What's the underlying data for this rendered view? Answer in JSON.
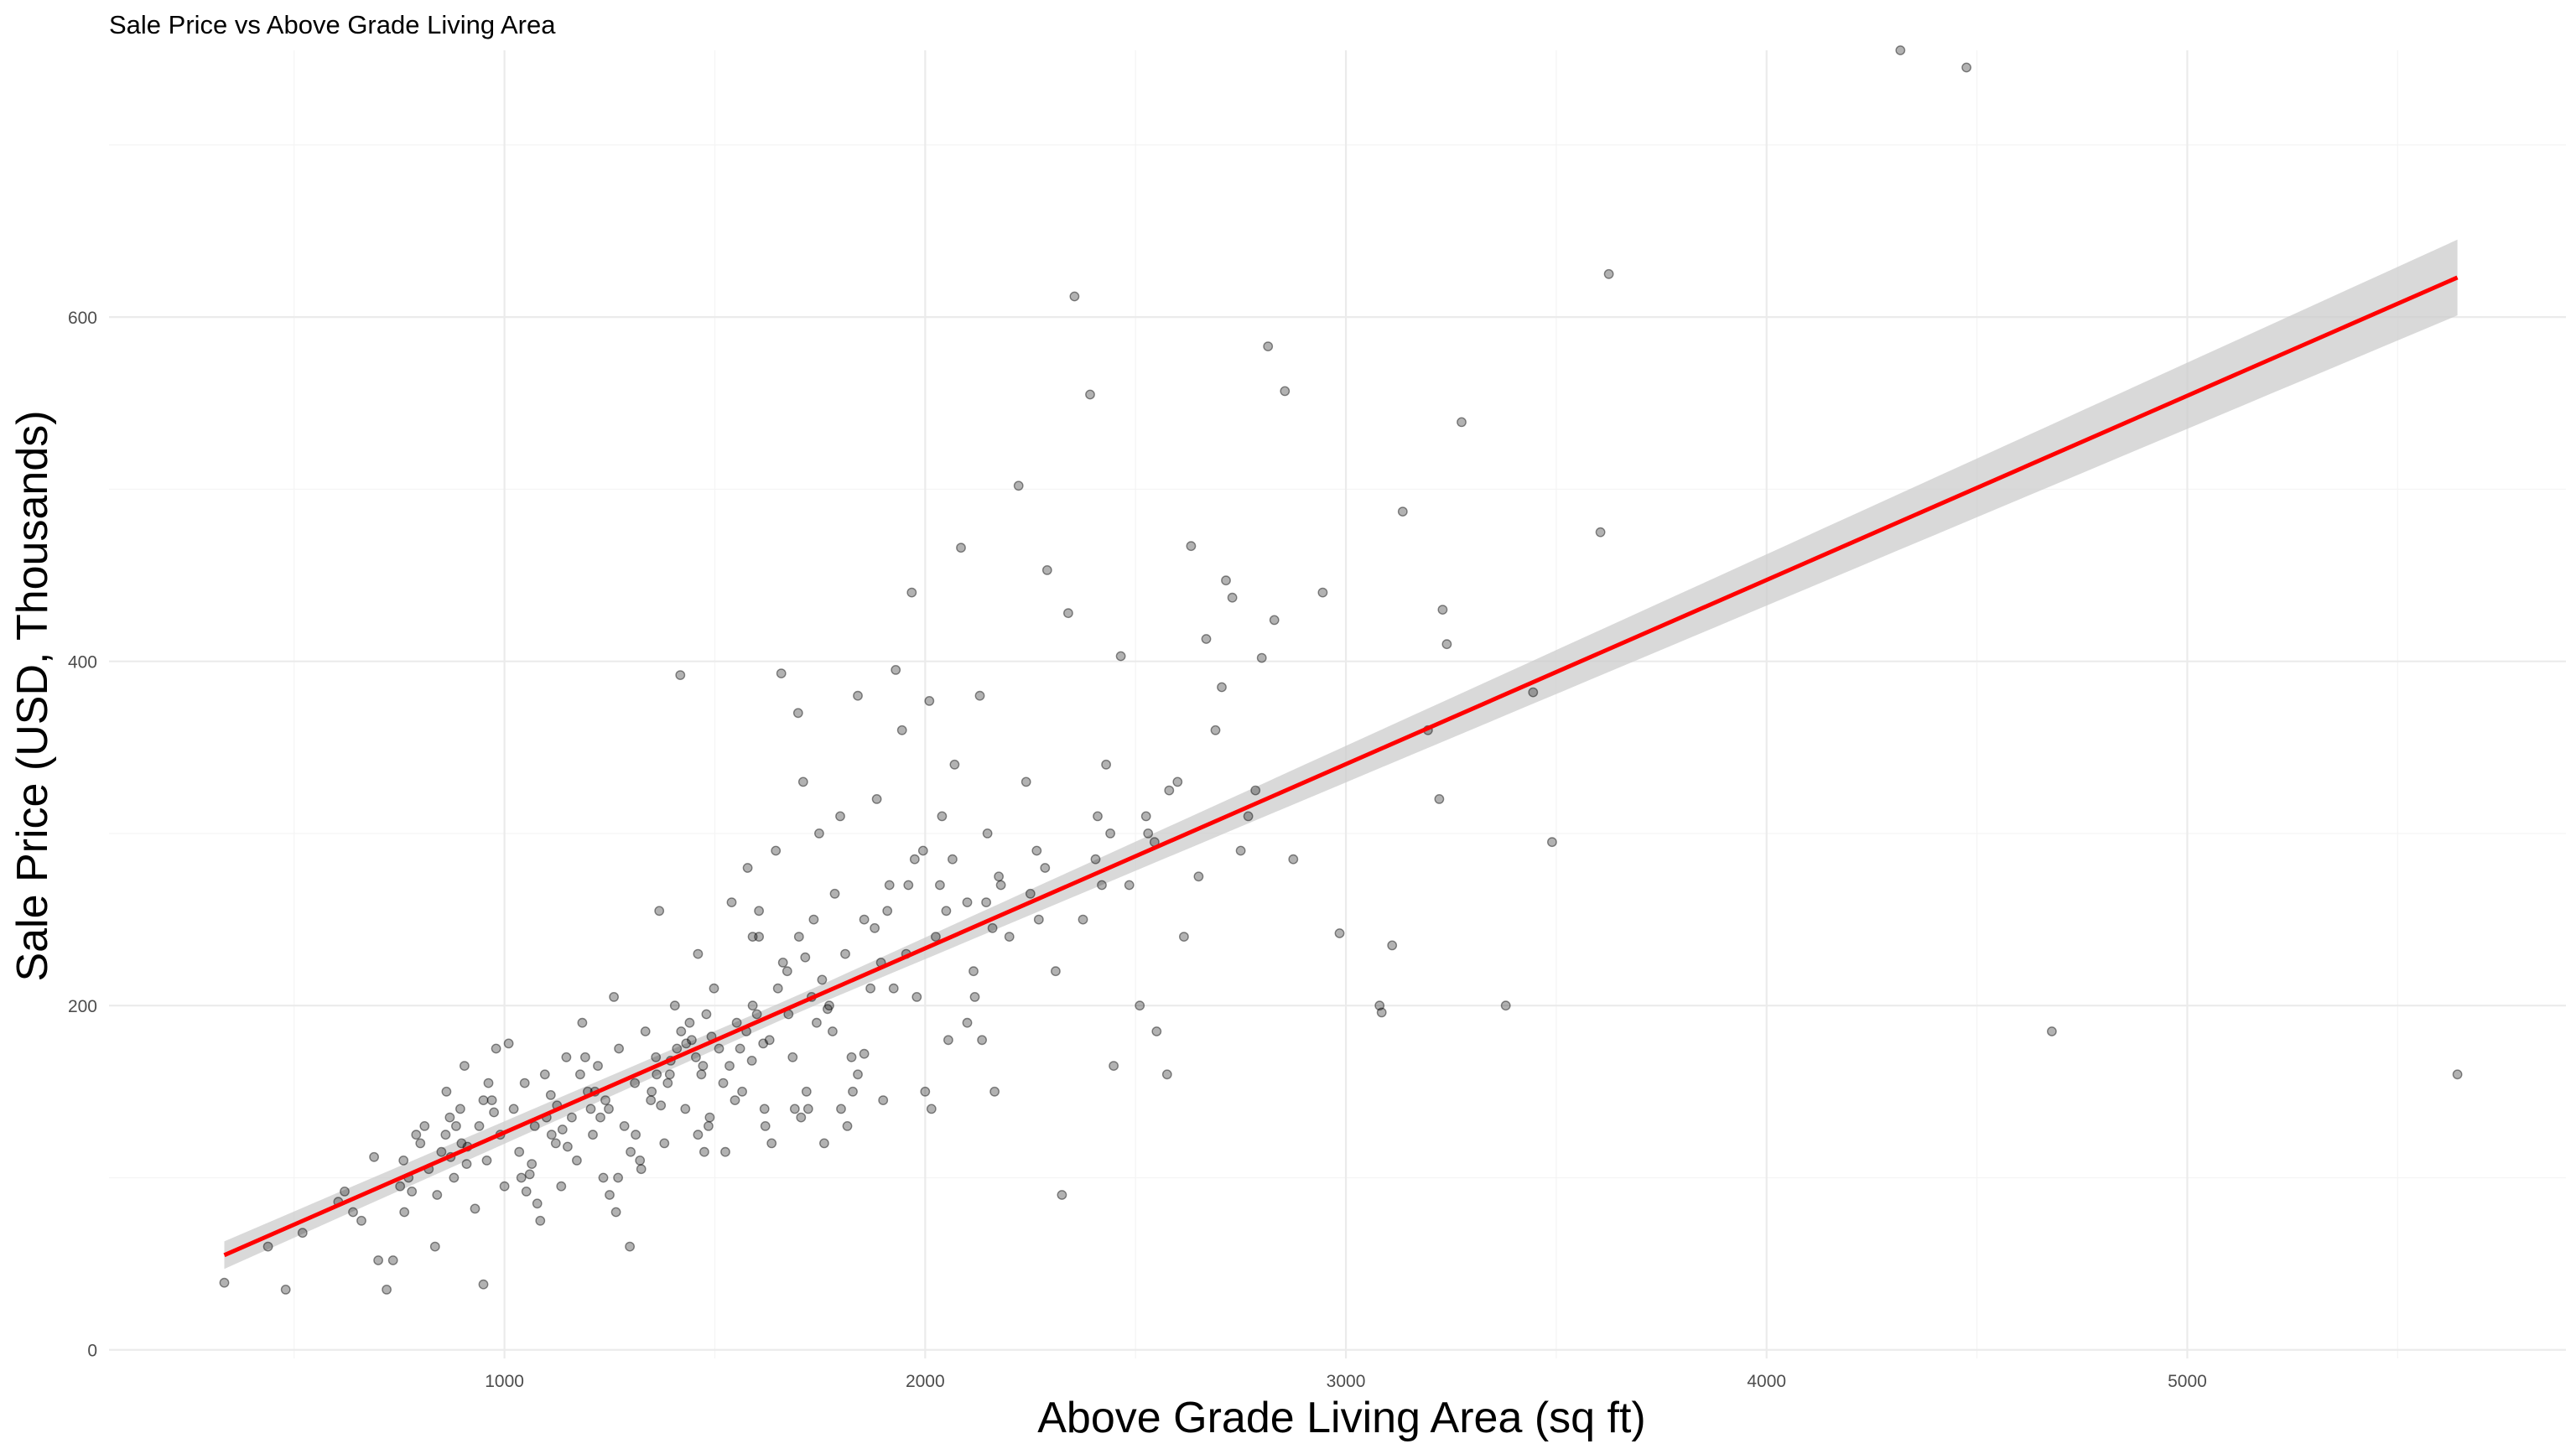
{
  "chart_data": {
    "type": "scatter",
    "title": "Sale Price vs Above Grade Living Area",
    "xlabel": "Above Grade Living Area (sq ft)",
    "ylabel": "Sale Price (USD, Thousands)",
    "xlim": [
      60,
      5900
    ],
    "ylim": [
      -5,
      755
    ],
    "x_ticks": [
      1000,
      2000,
      3000,
      4000,
      5000
    ],
    "y_ticks": [
      0,
      200,
      400,
      600
    ],
    "x_tick_labels": [
      "1000",
      "2000",
      "3000",
      "4000",
      "5000"
    ],
    "y_tick_labels": [
      "0",
      "200",
      "400",
      "600"
    ],
    "grid": true,
    "point_color": "#000000",
    "point_alpha": 0.3,
    "trend": {
      "color": "#ff0000",
      "band_color": "#cccccc",
      "x_start": 334,
      "x_end": 5642,
      "y_start": 55,
      "y_end": 623,
      "band_halfwidth_start": 8,
      "band_halfwidth_end": 22
    },
    "series": [
      {
        "points": [
          [
            334,
            39
          ],
          [
            438,
            60
          ],
          [
            480,
            35
          ],
          [
            520,
            68
          ],
          [
            605,
            86
          ],
          [
            620,
            92
          ],
          [
            640,
            80
          ],
          [
            660,
            75
          ],
          [
            690,
            112
          ],
          [
            700,
            52
          ],
          [
            720,
            35
          ],
          [
            735,
            52
          ],
          [
            752,
            95
          ],
          [
            762,
            80
          ],
          [
            780,
            92
          ],
          [
            800,
            120
          ],
          [
            810,
            130
          ],
          [
            820,
            105
          ],
          [
            835,
            60
          ],
          [
            840,
            90
          ],
          [
            850,
            115
          ],
          [
            862,
            150
          ],
          [
            870,
            135
          ],
          [
            880,
            100
          ],
          [
            895,
            140
          ],
          [
            905,
            165
          ],
          [
            912,
            118
          ],
          [
            930,
            82
          ],
          [
            940,
            130
          ],
          [
            950,
            38
          ],
          [
            958,
            110
          ],
          [
            970,
            145
          ],
          [
            980,
            175
          ],
          [
            990,
            125
          ],
          [
            1000,
            95
          ],
          [
            1010,
            178
          ],
          [
            1022,
            140
          ],
          [
            1035,
            115
          ],
          [
            1048,
            155
          ],
          [
            1060,
            102
          ],
          [
            1072,
            130
          ],
          [
            1085,
            75
          ],
          [
            1096,
            160
          ],
          [
            1110,
            148
          ],
          [
            1122,
            120
          ],
          [
            1135,
            95
          ],
          [
            1147,
            170
          ],
          [
            1160,
            135
          ],
          [
            1172,
            110
          ],
          [
            1185,
            190
          ],
          [
            1198,
            150
          ],
          [
            1210,
            125
          ],
          [
            1222,
            165
          ],
          [
            1235,
            100
          ],
          [
            1248,
            140
          ],
          [
            1260,
            205
          ],
          [
            1272,
            175
          ],
          [
            1285,
            130
          ],
          [
            1298,
            60
          ],
          [
            1310,
            155
          ],
          [
            1322,
            110
          ],
          [
            1335,
            185
          ],
          [
            1348,
            145
          ],
          [
            1360,
            170
          ],
          [
            1368,
            255
          ],
          [
            1380,
            120
          ],
          [
            1393,
            160
          ],
          [
            1405,
            200
          ],
          [
            1418,
            392
          ],
          [
            1430,
            140
          ],
          [
            1445,
            180
          ],
          [
            1460,
            230
          ],
          [
            1472,
            165
          ],
          [
            1485,
            130
          ],
          [
            1498,
            210
          ],
          [
            1510,
            175
          ],
          [
            1525,
            115
          ],
          [
            1540,
            260
          ],
          [
            1552,
            190
          ],
          [
            1565,
            150
          ],
          [
            1578,
            280
          ],
          [
            1590,
            200
          ],
          [
            1605,
            240
          ],
          [
            1618,
            140
          ],
          [
            1630,
            180
          ],
          [
            1645,
            290
          ],
          [
            1658,
            393
          ],
          [
            1672,
            220
          ],
          [
            1685,
            170
          ],
          [
            1698,
            370
          ],
          [
            1710,
            330
          ],
          [
            1722,
            140
          ],
          [
            1735,
            250
          ],
          [
            1748,
            300
          ],
          [
            1760,
            120
          ],
          [
            1772,
            200
          ],
          [
            1785,
            265
          ],
          [
            1798,
            310
          ],
          [
            1810,
            230
          ],
          [
            1825,
            170
          ],
          [
            1840,
            380
          ],
          [
            1855,
            250
          ],
          [
            1870,
            210
          ],
          [
            1885,
            320
          ],
          [
            1900,
            145
          ],
          [
            1915,
            270
          ],
          [
            1930,
            395
          ],
          [
            1945,
            360
          ],
          [
            1955,
            230
          ],
          [
            1968,
            440
          ],
          [
            1980,
            205
          ],
          [
            1995,
            290
          ],
          [
            2010,
            377
          ],
          [
            2025,
            240
          ],
          [
            2040,
            310
          ],
          [
            2055,
            180
          ],
          [
            2070,
            340
          ],
          [
            2085,
            466
          ],
          [
            2100,
            260
          ],
          [
            2115,
            220
          ],
          [
            2130,
            380
          ],
          [
            2148,
            300
          ],
          [
            2165,
            150
          ],
          [
            2180,
            270
          ],
          [
            2200,
            240
          ],
          [
            2222,
            502
          ],
          [
            2240,
            330
          ],
          [
            2265,
            290
          ],
          [
            2290,
            453
          ],
          [
            2310,
            220
          ],
          [
            2325,
            90
          ],
          [
            2340,
            428
          ],
          [
            2355,
            612
          ],
          [
            2375,
            250
          ],
          [
            2392,
            555
          ],
          [
            2410,
            310
          ],
          [
            2430,
            340
          ],
          [
            2448,
            165
          ],
          [
            2465,
            403
          ],
          [
            2485,
            270
          ],
          [
            2510,
            200
          ],
          [
            2530,
            300
          ],
          [
            2550,
            185
          ],
          [
            2575,
            160
          ],
          [
            2600,
            330
          ],
          [
            2615,
            240
          ],
          [
            2632,
            467
          ],
          [
            2650,
            275
          ],
          [
            2668,
            413
          ],
          [
            2690,
            360
          ],
          [
            2705,
            385
          ],
          [
            2715,
            447
          ],
          [
            2730,
            437
          ],
          [
            2750,
            290
          ],
          [
            2768,
            310
          ],
          [
            2785,
            325
          ],
          [
            2800,
            402
          ],
          [
            2815,
            583
          ],
          [
            2830,
            424
          ],
          [
            2855,
            557
          ],
          [
            2875,
            285
          ],
          [
            2945,
            440
          ],
          [
            2985,
            242
          ],
          [
            3080,
            200
          ],
          [
            3085,
            196
          ],
          [
            3110,
            235
          ],
          [
            3135,
            487
          ],
          [
            3195,
            360
          ],
          [
            3222,
            320
          ],
          [
            3230,
            430
          ],
          [
            3240,
            410
          ],
          [
            3275,
            539
          ],
          [
            3380,
            200
          ],
          [
            3445,
            382
          ],
          [
            3490,
            295
          ],
          [
            3605,
            475
          ],
          [
            3625,
            625
          ],
          [
            4318,
            755
          ],
          [
            4475,
            745
          ],
          [
            4678,
            185
          ],
          [
            5642,
            160
          ],
          [
            1410,
            175
          ],
          [
            1420,
            185
          ],
          [
            1432,
            178
          ],
          [
            1440,
            190
          ],
          [
            1455,
            170
          ],
          [
            1468,
            160
          ],
          [
            1480,
            195
          ],
          [
            1492,
            182
          ],
          [
            1350,
            150
          ],
          [
            1362,
            160
          ],
          [
            1372,
            142
          ],
          [
            1388,
            155
          ],
          [
            1395,
            168
          ],
          [
            1205,
            140
          ],
          [
            1215,
            150
          ],
          [
            1228,
            135
          ],
          [
            1240,
            145
          ],
          [
            1100,
            135
          ],
          [
            1112,
            125
          ],
          [
            1125,
            142
          ],
          [
            1138,
            128
          ],
          [
            1150,
            118
          ],
          [
            860,
            125
          ],
          [
            872,
            112
          ],
          [
            885,
            130
          ],
          [
            898,
            120
          ],
          [
            910,
            108
          ],
          [
            1560,
            175
          ],
          [
            1575,
            185
          ],
          [
            1588,
            168
          ],
          [
            1600,
            195
          ],
          [
            1615,
            178
          ],
          [
            1730,
            205
          ],
          [
            1742,
            190
          ],
          [
            1755,
            215
          ],
          [
            1768,
            198
          ],
          [
            1780,
            185
          ],
          [
            1690,
            140
          ],
          [
            1705,
            135
          ],
          [
            1718,
            150
          ],
          [
            1650,
            210
          ],
          [
            1662,
            225
          ],
          [
            1675,
            195
          ],
          [
            1520,
            155
          ],
          [
            1535,
            165
          ],
          [
            1548,
            145
          ],
          [
            1300,
            115
          ],
          [
            1312,
            125
          ],
          [
            1325,
            105
          ],
          [
            1040,
            100
          ],
          [
            1052,
            92
          ],
          [
            1065,
            108
          ],
          [
            1078,
            85
          ],
          [
            760,
            110
          ],
          [
            772,
            100
          ],
          [
            790,
            125
          ],
          [
            1880,
            245
          ],
          [
            1895,
            225
          ],
          [
            1910,
            255
          ],
          [
            1925,
            210
          ],
          [
            2035,
            270
          ],
          [
            2050,
            255
          ],
          [
            2065,
            285
          ],
          [
            2145,
            260
          ],
          [
            2160,
            245
          ],
          [
            2175,
            275
          ],
          [
            2250,
            265
          ],
          [
            2270,
            250
          ],
          [
            2285,
            280
          ],
          [
            2405,
            285
          ],
          [
            2420,
            270
          ],
          [
            2440,
            300
          ],
          [
            2525,
            310
          ],
          [
            2545,
            295
          ],
          [
            2580,
            325
          ],
          [
            950,
            145
          ],
          [
            962,
            155
          ],
          [
            975,
            138
          ],
          [
            1180,
            160
          ],
          [
            1192,
            170
          ],
          [
            1460,
            125
          ],
          [
            1475,
            115
          ],
          [
            1488,
            135
          ],
          [
            1800,
            140
          ],
          [
            1815,
            130
          ],
          [
            1828,
            150
          ],
          [
            2000,
            150
          ],
          [
            2015,
            140
          ],
          [
            2100,
            190
          ],
          [
            2118,
            205
          ],
          [
            2135,
            180
          ],
          [
            1840,
            160
          ],
          [
            1855,
            172
          ],
          [
            1620,
            130
          ],
          [
            1635,
            120
          ],
          [
            1250,
            90
          ],
          [
            1265,
            80
          ],
          [
            1270,
            100
          ],
          [
            1590,
            240
          ],
          [
            1605,
            255
          ],
          [
            1700,
            240
          ],
          [
            1715,
            228
          ],
          [
            1960,
            270
          ],
          [
            1975,
            285
          ]
        ]
      }
    ]
  }
}
